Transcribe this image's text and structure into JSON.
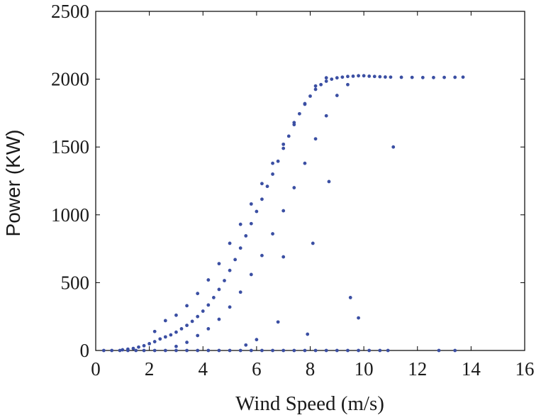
{
  "chart_data": {
    "type": "scatter",
    "title": "",
    "xlabel": "Wind Speed (m/s)",
    "ylabel": "Power (KW)",
    "xlim": [
      0,
      16
    ],
    "ylim": [
      0,
      2500
    ],
    "xticks": [
      "0",
      "2",
      "4",
      "6",
      "8",
      "10",
      "12",
      "14",
      "16"
    ],
    "yticks": [
      "0",
      "500",
      "1000",
      "1500",
      "2000",
      "2500"
    ],
    "grid": false,
    "legend": "none",
    "marker_color": "#3b4fa3",
    "series": [
      {
        "points": [
          [
            0.3,
            0
          ],
          [
            0.6,
            0
          ],
          [
            0.9,
            0
          ],
          [
            1.2,
            0
          ],
          [
            1.5,
            0
          ],
          [
            1.8,
            0
          ],
          [
            2.2,
            0
          ],
          [
            2.6,
            0
          ],
          [
            3.0,
            0
          ],
          [
            3.4,
            0
          ],
          [
            3.8,
            0
          ],
          [
            4.2,
            0
          ],
          [
            4.6,
            0
          ],
          [
            5.0,
            0
          ],
          [
            5.4,
            0
          ],
          [
            5.8,
            0
          ],
          [
            6.2,
            0
          ],
          [
            6.6,
            0
          ],
          [
            7.0,
            0
          ],
          [
            7.4,
            0
          ],
          [
            7.8,
            0
          ],
          [
            8.2,
            0
          ],
          [
            8.6,
            0
          ],
          [
            9.0,
            0
          ],
          [
            9.4,
            0
          ],
          [
            9.8,
            0
          ],
          [
            10.2,
            0
          ],
          [
            10.6,
            0
          ],
          [
            10.9,
            0
          ],
          [
            12.8,
            0
          ],
          [
            13.4,
            0
          ],
          [
            1.0,
            5
          ],
          [
            1.2,
            10
          ],
          [
            1.4,
            15
          ],
          [
            1.6,
            25
          ],
          [
            1.8,
            35
          ],
          [
            2.0,
            50
          ],
          [
            2.2,
            65
          ],
          [
            2.4,
            85
          ],
          [
            2.6,
            100
          ],
          [
            2.8,
            115
          ],
          [
            3.0,
            135
          ],
          [
            3.2,
            160
          ],
          [
            3.4,
            185
          ],
          [
            3.6,
            215
          ],
          [
            3.8,
            250
          ],
          [
            4.0,
            290
          ],
          [
            4.2,
            335
          ],
          [
            4.4,
            390
          ],
          [
            4.6,
            450
          ],
          [
            4.8,
            515
          ],
          [
            5.0,
            590
          ],
          [
            5.2,
            670
          ],
          [
            5.4,
            755
          ],
          [
            5.6,
            845
          ],
          [
            5.8,
            935
          ],
          [
            6.0,
            1025
          ],
          [
            6.2,
            1115
          ],
          [
            6.4,
            1210
          ],
          [
            6.6,
            1300
          ],
          [
            6.8,
            1395
          ],
          [
            7.0,
            1490
          ],
          [
            7.2,
            1580
          ],
          [
            7.4,
            1665
          ],
          [
            7.6,
            1745
          ],
          [
            7.8,
            1815
          ],
          [
            8.0,
            1875
          ],
          [
            8.2,
            1925
          ],
          [
            8.4,
            1960
          ],
          [
            8.6,
            1985
          ],
          [
            8.8,
            2000
          ],
          [
            9.0,
            2010
          ],
          [
            9.2,
            2015
          ],
          [
            9.4,
            2020
          ],
          [
            9.6,
            2022
          ],
          [
            9.8,
            2025
          ],
          [
            10.0,
            2025
          ],
          [
            10.2,
            2022
          ],
          [
            10.4,
            2020
          ],
          [
            10.6,
            2018
          ],
          [
            10.8,
            2016
          ],
          [
            11.0,
            2015
          ],
          [
            11.4,
            2014
          ],
          [
            11.8,
            2013
          ],
          [
            12.2,
            2012
          ],
          [
            12.6,
            2012
          ],
          [
            13.0,
            2013
          ],
          [
            13.4,
            2014
          ],
          [
            13.7,
            2015
          ],
          [
            2.2,
            140
          ],
          [
            2.6,
            220
          ],
          [
            3.0,
            260
          ],
          [
            3.4,
            330
          ],
          [
            3.8,
            420
          ],
          [
            4.2,
            520
          ],
          [
            4.6,
            640
          ],
          [
            5.0,
            790
          ],
          [
            5.4,
            930
          ],
          [
            5.8,
            1080
          ],
          [
            6.2,
            1230
          ],
          [
            6.6,
            1380
          ],
          [
            7.0,
            1520
          ],
          [
            7.4,
            1680
          ],
          [
            7.8,
            1820
          ],
          [
            8.2,
            1950
          ],
          [
            8.6,
            2010
          ],
          [
            3.0,
            30
          ],
          [
            3.4,
            60
          ],
          [
            3.8,
            110
          ],
          [
            4.2,
            160
          ],
          [
            4.6,
            230
          ],
          [
            5.0,
            320
          ],
          [
            5.4,
            430
          ],
          [
            5.8,
            560
          ],
          [
            6.2,
            700
          ],
          [
            6.6,
            860
          ],
          [
            7.0,
            1030
          ],
          [
            7.4,
            1200
          ],
          [
            7.8,
            1380
          ],
          [
            8.2,
            1560
          ],
          [
            8.6,
            1730
          ],
          [
            9.0,
            1880
          ],
          [
            9.4,
            1960
          ],
          [
            11.1,
            1500
          ],
          [
            8.7,
            1245
          ],
          [
            8.1,
            790
          ],
          [
            7.0,
            690
          ],
          [
            9.5,
            390
          ],
          [
            9.8,
            240
          ],
          [
            6.0,
            80
          ],
          [
            5.6,
            40
          ],
          [
            7.9,
            120
          ],
          [
            6.8,
            210
          ]
        ]
      }
    ]
  }
}
